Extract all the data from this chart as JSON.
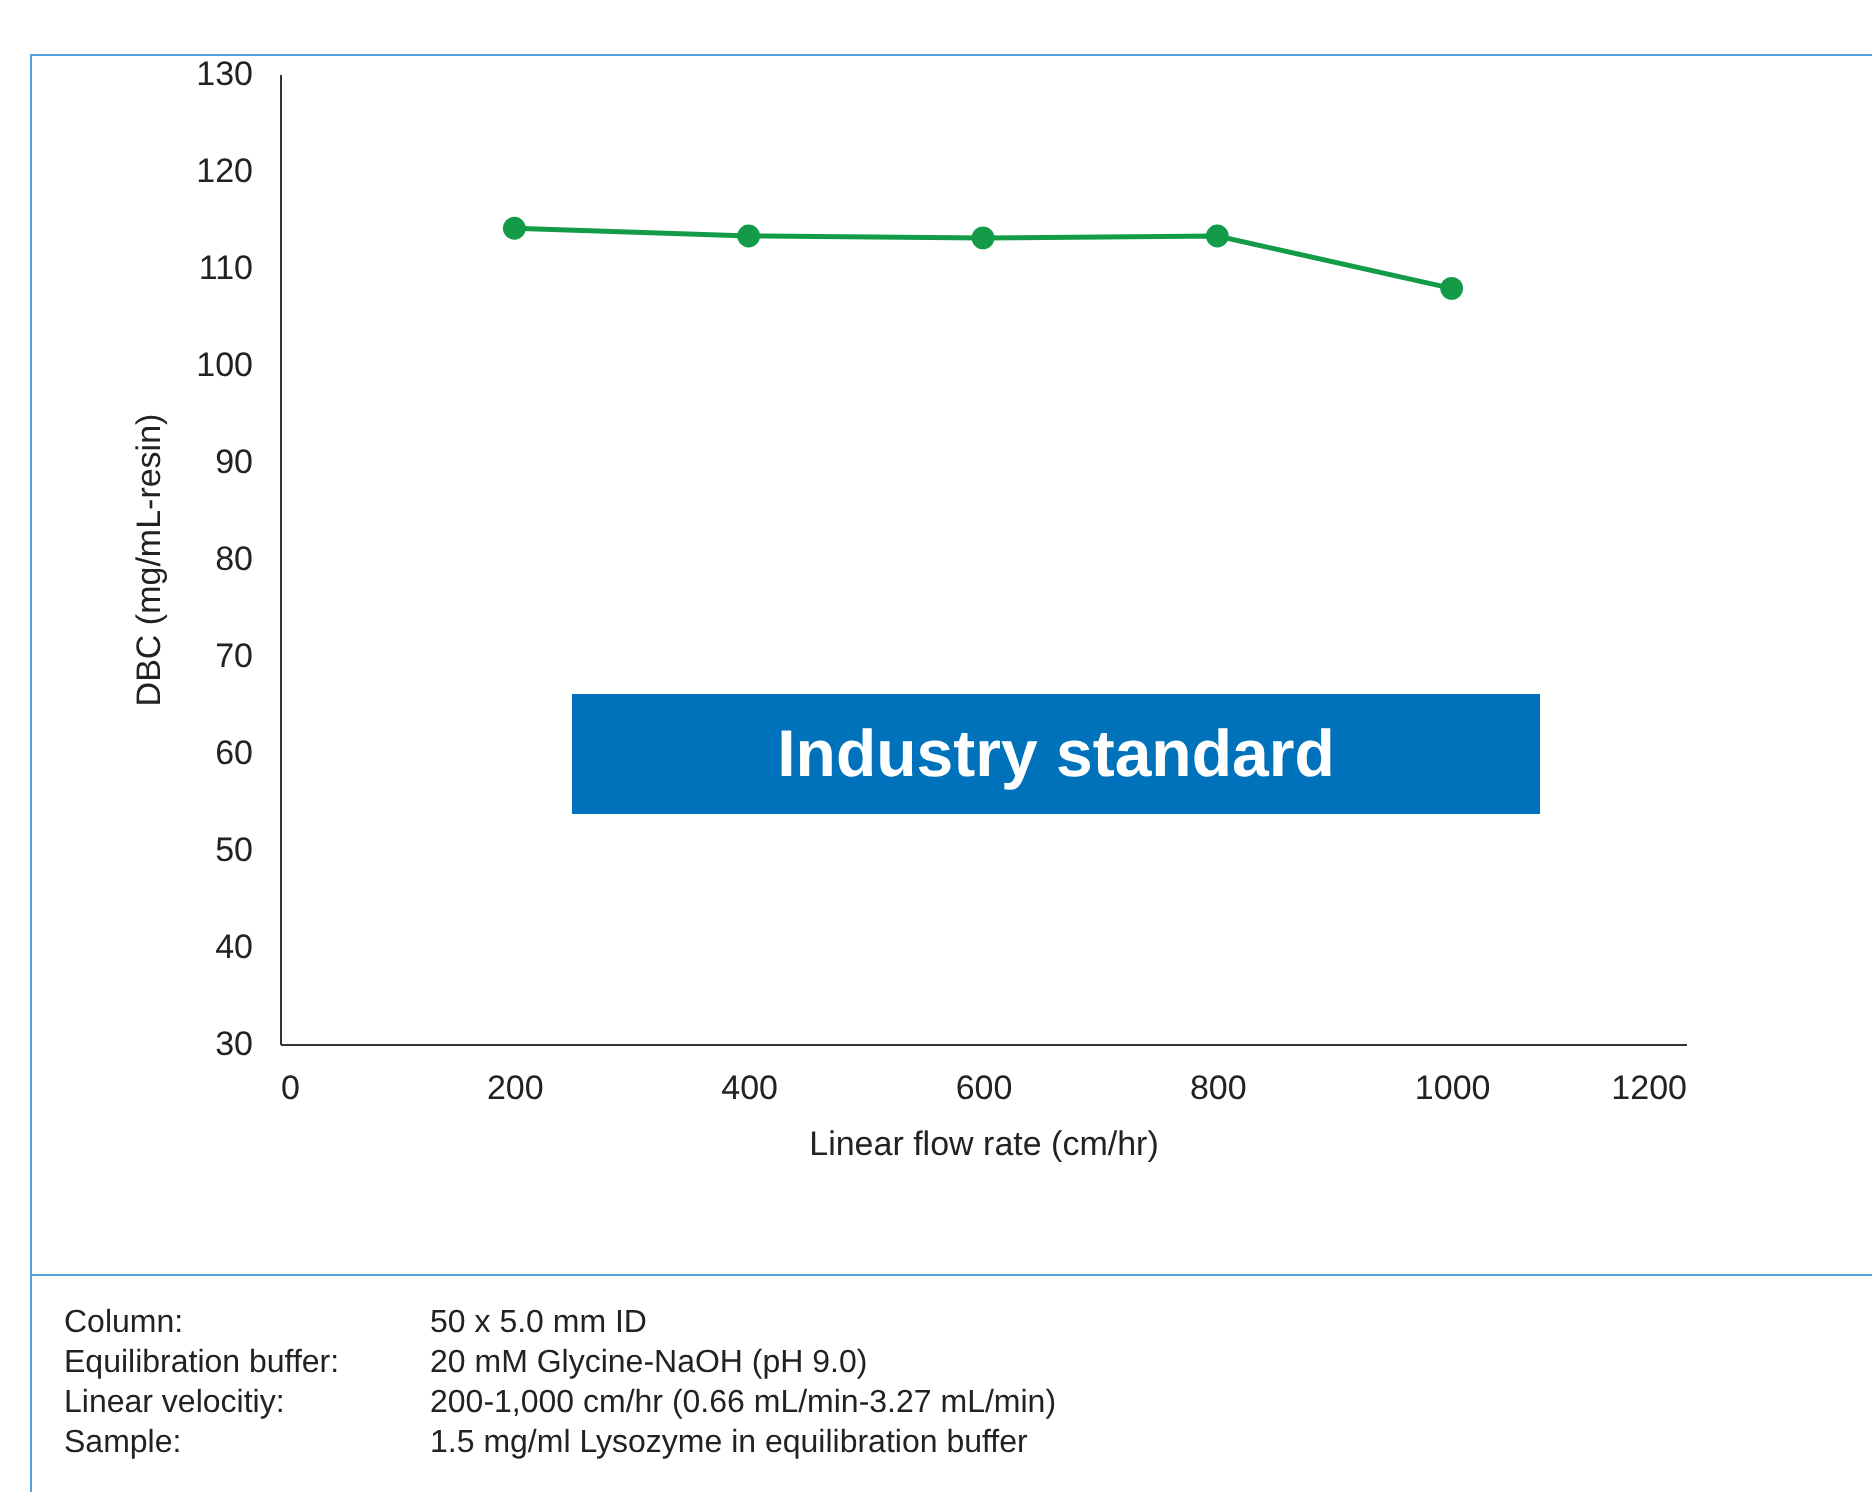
{
  "chart_data": {
    "type": "line",
    "xlabel": "Linear flow rate (cm/hr)",
    "ylabel": "DBC (mg/mL-resin)",
    "x": [
      200,
      400,
      600,
      800,
      1000
    ],
    "series": [
      {
        "color": "#139b48",
        "values": [
          114.1,
          113.3,
          113.1,
          113.3,
          107.9
        ]
      }
    ],
    "xlim": [
      0,
      1200
    ],
    "xticks": [
      0,
      200,
      400,
      600,
      800,
      1000,
      1200
    ],
    "ylim": [
      30,
      130
    ],
    "yticks": [
      30,
      40,
      50,
      60,
      70,
      80,
      90,
      100,
      110,
      120,
      130
    ],
    "grid": false,
    "legend": false,
    "marker": "circle",
    "line_style": "solid",
    "annotations": [
      "Industry standard",
      "Column: 50 x 5.0 mm ID",
      "Equilibration buffer: 20 mM Glycine-NaOH (pH 9.0)",
      "Linear velocitiy: 200-1,000 cm/hr (0.66 mL/min-3.27 mL/min)",
      "Sample: 1.5 mg/ml Lysozyme in equilibration buffer"
    ]
  }
}
